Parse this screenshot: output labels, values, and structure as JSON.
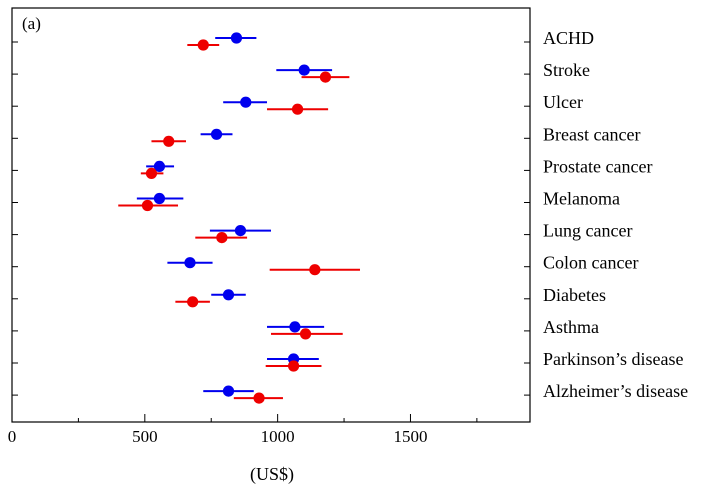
{
  "chart_data": {
    "type": "scatter",
    "panel_label": "(a)",
    "xlabel": "(US$)",
    "ylabel": "",
    "xlim": [
      0,
      1950
    ],
    "x_ticks": [
      0,
      500,
      1000,
      1500
    ],
    "x_minor_ticks": [
      250,
      750,
      1250,
      1750
    ],
    "grid": false,
    "legend": "none",
    "categories": [
      "ACHD",
      "Stroke",
      "Ulcer",
      "Breast cancer",
      "Prostate cancer",
      "Melanoma",
      "Lung cancer",
      "Colon cancer",
      "Diabetes",
      "Asthma",
      "Parkinson’s disease",
      "Alzheimer’s disease"
    ],
    "series": [
      {
        "color": "#0000ee",
        "points": [
          {
            "value": 845,
            "low": 765,
            "high": 920
          },
          {
            "value": 1100,
            "low": 995,
            "high": 1205
          },
          {
            "value": 880,
            "low": 795,
            "high": 960
          },
          {
            "value": 770,
            "low": 710,
            "high": 830
          },
          {
            "value": 555,
            "low": 505,
            "high": 610
          },
          {
            "value": 555,
            "low": 470,
            "high": 645
          },
          {
            "value": 860,
            "low": 745,
            "high": 975
          },
          {
            "value": 670,
            "low": 585,
            "high": 755
          },
          {
            "value": 815,
            "low": 750,
            "high": 880
          },
          {
            "value": 1065,
            "low": 960,
            "high": 1175
          },
          {
            "value": 1060,
            "low": 960,
            "high": 1155
          },
          {
            "value": 815,
            "low": 720,
            "high": 910
          }
        ]
      },
      {
        "color": "#ee0000",
        "points": [
          {
            "value": 720,
            "low": 660,
            "high": 780
          },
          {
            "value": 1180,
            "low": 1090,
            "high": 1270
          },
          {
            "value": 1075,
            "low": 960,
            "high": 1190
          },
          {
            "value": 590,
            "low": 525,
            "high": 655
          },
          {
            "value": 525,
            "low": 485,
            "high": 570
          },
          {
            "value": 510,
            "low": 400,
            "high": 625
          },
          {
            "value": 790,
            "low": 690,
            "high": 885
          },
          {
            "value": 1140,
            "low": 970,
            "high": 1310
          },
          {
            "value": 680,
            "low": 615,
            "high": 745
          },
          {
            "value": 1105,
            "low": 975,
            "high": 1245
          },
          {
            "value": 1060,
            "low": 955,
            "high": 1165
          },
          {
            "value": 930,
            "low": 835,
            "high": 1020
          }
        ]
      }
    ]
  }
}
